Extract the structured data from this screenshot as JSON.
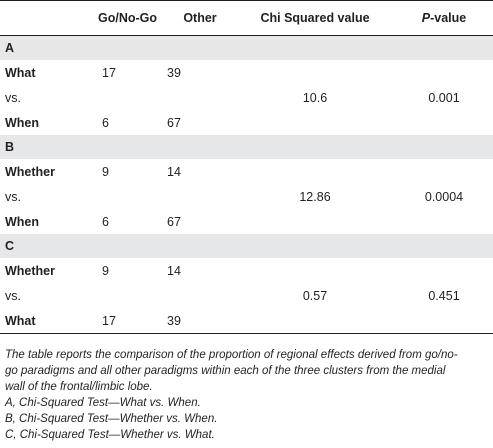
{
  "headers": {
    "col1": "",
    "col2": "Go/No-Go",
    "col3": "Other",
    "col4": "Chi Squared value",
    "col5_p": "P",
    "col5_rest": "-value"
  },
  "sections": [
    {
      "label": "A",
      "rows": [
        {
          "label": "What",
          "go": "17",
          "other": "39"
        },
        {
          "label": "vs.",
          "chi": "10.6",
          "p": "0.001"
        },
        {
          "label": "When",
          "go": "6",
          "other": "67"
        }
      ]
    },
    {
      "label": "B",
      "rows": [
        {
          "label": "Whether",
          "go": "9",
          "other": "14"
        },
        {
          "label": "vs.",
          "chi": "12.86",
          "p": "0.0004"
        },
        {
          "label": "When",
          "go": "6",
          "other": "67"
        }
      ]
    },
    {
      "label": "C",
      "rows": [
        {
          "label": "Whether",
          "go": "9",
          "other": "14"
        },
        {
          "label": "vs.",
          "chi": "0.57",
          "p": "0.451"
        },
        {
          "label": "What",
          "go": "17",
          "other": "39"
        }
      ]
    }
  ],
  "footnote": {
    "line1": "The table reports the comparison of the proportion of regional effects derived from go/no-",
    "line2": "go paradigms and all other paradigms within each of the three clusters from the medial",
    "line3": "wall of the frontal/limbic lobe.",
    "line4": "A, Chi-Squared Test—What vs. When.",
    "line5": "B, Chi-Squared Test—Whether vs. When.",
    "line6": "C, Chi-Squared Test—Whether vs. What."
  }
}
